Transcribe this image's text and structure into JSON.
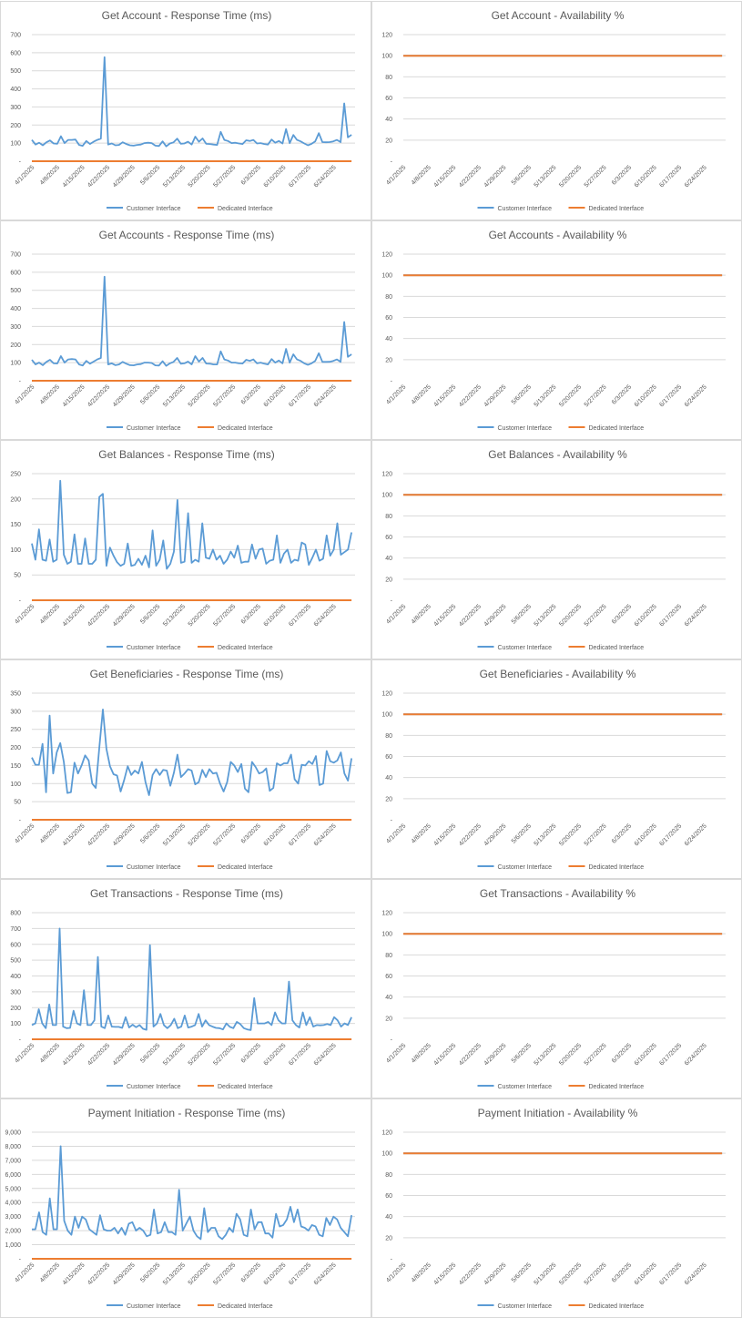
{
  "colors": {
    "customer": "#5b9bd5",
    "dedicated": "#ed7d31",
    "grid": "#d9d9d9",
    "text": "#595959"
  },
  "legend": {
    "customer": "Customer Interface",
    "dedicated": "Dedicated Interface"
  },
  "x_ticks": [
    "4/1/2025",
    "4/8/2025",
    "4/15/2025",
    "4/22/2025",
    "4/29/2025",
    "5/6/2025",
    "5/13/2025",
    "5/20/2025",
    "5/27/2025",
    "6/3/2025",
    "6/10/2025",
    "6/17/2025",
    "6/24/2025"
  ],
  "chart_data": [
    {
      "type": "line",
      "title": "Get Account - Response Time (ms)",
      "ylim": [
        0,
        700
      ],
      "yticks": [
        "-",
        "100",
        "200",
        "300",
        "400",
        "500",
        "600",
        "700"
      ],
      "grid": true,
      "legend_position": "bottom",
      "x_start": "4/1/2025",
      "x_end": "6/30/2025",
      "series": [
        {
          "name": "Customer Interface",
          "values": [
            118,
            92,
            102,
            88,
            105,
            115,
            98,
            96,
            138,
            100,
            118,
            118,
            120,
            90,
            85,
            112,
            95,
            108,
            118,
            125,
            575,
            92,
            98,
            88,
            90,
            105,
            95,
            88,
            86,
            90,
            92,
            100,
            102,
            100,
            86,
            84,
            110,
            82,
            98,
            104,
            125,
            96,
            98,
            108,
            92,
            136,
            108,
            126,
            96,
            95,
            92,
            90,
            162,
            118,
            112,
            100,
            102,
            98,
            95,
            116,
            112,
            118,
            98,
            100,
            95,
            92,
            120,
            102,
            112,
            98,
            178,
            100,
            145,
            118,
            110,
            98,
            88,
            96,
            110,
            155,
            106,
            105,
            106,
            110,
            118,
            106,
            320,
            132,
            146
          ]
        },
        {
          "name": "Dedicated Interface",
          "values": [
            0,
            0
          ]
        }
      ]
    },
    {
      "type": "line",
      "title": "Get Account - Availability %",
      "ylim": [
        0,
        120
      ],
      "yticks": [
        "-",
        "20",
        "40",
        "60",
        "80",
        "100",
        "120"
      ],
      "grid": true,
      "legend_position": "bottom",
      "x_start": "4/1/2025",
      "x_end": "6/30/2025",
      "series": [
        {
          "name": "Customer Interface",
          "values": [
            100,
            100
          ]
        },
        {
          "name": "Dedicated Interface",
          "values": [
            100,
            100
          ]
        }
      ]
    },
    {
      "type": "line",
      "title": "Get Accounts - Response Time (ms)",
      "ylim": [
        0,
        700
      ],
      "yticks": [
        "-",
        "100",
        "200",
        "300",
        "400",
        "500",
        "600",
        "700"
      ],
      "grid": true,
      "legend_position": "bottom",
      "x_start": "4/1/2025",
      "x_end": "6/30/2025",
      "series": [
        {
          "name": "Customer Interface",
          "values": [
            116,
            90,
            100,
            86,
            104,
            116,
            96,
            95,
            136,
            100,
            118,
            120,
            118,
            90,
            84,
            110,
            94,
            106,
            118,
            126,
            575,
            90,
            96,
            86,
            90,
            104,
            94,
            86,
            85,
            90,
            92,
            100,
            100,
            98,
            85,
            84,
            108,
            82,
            96,
            104,
            126,
            94,
            96,
            106,
            90,
            136,
            106,
            126,
            95,
            94,
            90,
            90,
            162,
            118,
            112,
            100,
            100,
            96,
            95,
            116,
            110,
            118,
            96,
            100,
            94,
            90,
            120,
            100,
            112,
            96,
            176,
            100,
            146,
            118,
            110,
            96,
            88,
            96,
            110,
            152,
            104,
            104,
            105,
            110,
            118,
            104,
            325,
            132,
            146
          ]
        },
        {
          "name": "Dedicated Interface",
          "values": [
            0,
            0
          ]
        }
      ]
    },
    {
      "type": "line",
      "title": "Get Accounts - Availability %",
      "ylim": [
        0,
        120
      ],
      "yticks": [
        "-",
        "20",
        "40",
        "60",
        "80",
        "100",
        "120"
      ],
      "grid": true,
      "legend_position": "bottom",
      "x_start": "4/1/2025",
      "x_end": "6/30/2025",
      "series": [
        {
          "name": "Customer Interface",
          "values": [
            100,
            100
          ]
        },
        {
          "name": "Dedicated Interface",
          "values": [
            100,
            100
          ]
        }
      ]
    },
    {
      "type": "line",
      "title": "Get Balances - Response Time (ms)",
      "ylim": [
        0,
        250
      ],
      "yticks": [
        "-",
        "50",
        "100",
        "150",
        "200",
        "250"
      ],
      "grid": true,
      "legend_position": "bottom",
      "x_start": "4/1/2025",
      "x_end": "6/30/2025",
      "series": [
        {
          "name": "Customer Interface",
          "values": [
            112,
            80,
            140,
            80,
            78,
            120,
            76,
            80,
            236,
            90,
            72,
            76,
            130,
            72,
            72,
            122,
            72,
            72,
            80,
            204,
            210,
            68,
            104,
            88,
            75,
            68,
            72,
            112,
            68,
            70,
            82,
            70,
            88,
            65,
            138,
            68,
            80,
            118,
            62,
            72,
            96,
            198,
            74,
            76,
            172,
            74,
            80,
            76,
            152,
            84,
            82,
            100,
            80,
            88,
            72,
            80,
            96,
            84,
            108,
            74,
            76,
            76,
            110,
            82,
            100,
            102,
            72,
            78,
            80,
            128,
            74,
            92,
            100,
            74,
            80,
            78,
            114,
            110,
            70,
            84,
            100,
            78,
            82,
            128,
            88,
            100,
            152,
            90,
            95,
            100,
            134
          ]
        },
        {
          "name": "Dedicated Interface",
          "values": [
            0,
            0
          ]
        }
      ]
    },
    {
      "type": "line",
      "title": "Get Balances - Availability %",
      "ylim": [
        0,
        120
      ],
      "yticks": [
        "-",
        "20",
        "40",
        "60",
        "80",
        "100",
        "120"
      ],
      "grid": true,
      "legend_position": "bottom",
      "x_start": "4/1/2025",
      "x_end": "6/30/2025",
      "series": [
        {
          "name": "Customer Interface",
          "values": [
            100,
            100
          ]
        },
        {
          "name": "Dedicated Interface",
          "values": [
            100,
            100
          ]
        }
      ]
    },
    {
      "type": "line",
      "title": "Get Beneficiaries - Response Time (ms)",
      "ylim": [
        0,
        350
      ],
      "yticks": [
        "-",
        "50",
        "100",
        "150",
        "200",
        "250",
        "300",
        "350"
      ],
      "grid": true,
      "legend_position": "bottom",
      "x_start": "4/1/2025",
      "x_end": "6/30/2025",
      "series": [
        {
          "name": "Customer Interface",
          "values": [
            172,
            152,
            152,
            210,
            76,
            288,
            128,
            186,
            212,
            160,
            74,
            76,
            158,
            128,
            150,
            178,
            164,
            100,
            88,
            200,
            305,
            196,
            148,
            126,
            122,
            78,
            110,
            148,
            124,
            136,
            128,
            160,
            104,
            68,
            124,
            140,
            124,
            138,
            136,
            94,
            130,
            180,
            118,
            128,
            140,
            136,
            98,
            104,
            138,
            118,
            140,
            128,
            130,
            100,
            78,
            104,
            160,
            150,
            132,
            154,
            86,
            76,
            160,
            146,
            128,
            132,
            142,
            80,
            88,
            156,
            150,
            156,
            156,
            180,
            112,
            100,
            152,
            150,
            162,
            154,
            176,
            96,
            100,
            190,
            162,
            158,
            164,
            186,
            128,
            108,
            170
          ]
        },
        {
          "name": "Dedicated Interface",
          "values": [
            0,
            0
          ]
        }
      ]
    },
    {
      "type": "line",
      "title": "Get Beneficiaries - Availability %",
      "ylim": [
        0,
        120
      ],
      "yticks": [
        "-",
        "20",
        "40",
        "60",
        "80",
        "100",
        "120"
      ],
      "grid": true,
      "legend_position": "bottom",
      "x_start": "4/1/2025",
      "x_end": "6/30/2025",
      "series": [
        {
          "name": "Customer Interface",
          "values": [
            100,
            100
          ]
        },
        {
          "name": "Dedicated Interface",
          "values": [
            100,
            100
          ]
        }
      ]
    },
    {
      "type": "line",
      "title": "Get Transactions - Response Time (ms)",
      "ylim": [
        0,
        800
      ],
      "yticks": [
        "-",
        "100",
        "200",
        "300",
        "400",
        "500",
        "600",
        "700",
        "800"
      ],
      "grid": true,
      "legend_position": "bottom",
      "x_start": "4/1/2025",
      "x_end": "6/30/2025",
      "series": [
        {
          "name": "Customer Interface",
          "values": [
            90,
            100,
            190,
            100,
            70,
            220,
            90,
            90,
            700,
            80,
            70,
            72,
            180,
            100,
            90,
            310,
            90,
            90,
            120,
            520,
            80,
            70,
            150,
            80,
            78,
            78,
            72,
            140,
            74,
            92,
            76,
            90,
            66,
            60,
            595,
            80,
            100,
            160,
            90,
            70,
            90,
            130,
            70,
            80,
            150,
            74,
            80,
            90,
            160,
            80,
            120,
            90,
            80,
            72,
            70,
            62,
            100,
            78,
            70,
            110,
            96,
            70,
            62,
            58,
            260,
            100,
            100,
            100,
            110,
            90,
            170,
            120,
            100,
            100,
            365,
            120,
            90,
            74,
            170,
            90,
            140,
            80,
            90,
            88,
            90,
            96,
            90,
            140,
            120,
            80,
            100,
            90,
            140
          ]
        },
        {
          "name": "Dedicated Interface",
          "values": [
            0,
            0
          ]
        }
      ]
    },
    {
      "type": "line",
      "title": "Get Transactions - Availability %",
      "ylim": [
        0,
        120
      ],
      "yticks": [
        "-",
        "20",
        "40",
        "60",
        "80",
        "100",
        "120"
      ],
      "grid": true,
      "legend_position": "bottom",
      "x_start": "4/1/2025",
      "x_end": "6/30/2025",
      "series": [
        {
          "name": "Customer Interface",
          "values": [
            100,
            100
          ]
        },
        {
          "name": "Dedicated Interface",
          "values": [
            100,
            100
          ]
        }
      ]
    },
    {
      "type": "line",
      "title": "Payment Initiation - Response Time (ms)",
      "ylim": [
        0,
        9000
      ],
      "yticks": [
        "-",
        "1,000",
        "2,000",
        "3,000",
        "4,000",
        "5,000",
        "6,000",
        "7,000",
        "8,000",
        "9,000"
      ],
      "grid": true,
      "legend_position": "bottom",
      "x_start": "4/1/2025",
      "x_end": "6/30/2025",
      "series": [
        {
          "name": "Customer Interface",
          "values": [
            2100,
            2100,
            3300,
            1900,
            1700,
            4300,
            2100,
            2100,
            8000,
            2700,
            2000,
            1700,
            3000,
            2200,
            3000,
            2800,
            2100,
            1900,
            1700,
            3100,
            2100,
            2000,
            2000,
            2200,
            1800,
            2200,
            1700,
            2500,
            2600,
            2000,
            2200,
            2000,
            1600,
            1700,
            3500,
            1800,
            1900,
            2600,
            1900,
            1900,
            1700,
            4900,
            2000,
            2500,
            3000,
            2000,
            1600,
            1400,
            3600,
            1900,
            2200,
            2200,
            1600,
            1400,
            1700,
            2200,
            1900,
            3200,
            2800,
            1700,
            1600,
            3500,
            2100,
            2600,
            2600,
            1800,
            1800,
            1500,
            3200,
            2300,
            2400,
            2800,
            3700,
            2600,
            3500,
            2300,
            2200,
            2000,
            2400,
            2300,
            1700,
            1600,
            2900,
            2400,
            3000,
            2800,
            2200,
            1900,
            1600,
            3100
          ]
        },
        {
          "name": "Dedicated Interface",
          "values": [
            0,
            0
          ]
        }
      ]
    },
    {
      "type": "line",
      "title": "Payment Initiation - Availability %",
      "ylim": [
        0,
        120
      ],
      "yticks": [
        "-",
        "20",
        "40",
        "60",
        "80",
        "100",
        "120"
      ],
      "grid": true,
      "legend_position": "bottom",
      "x_start": "4/1/2025",
      "x_end": "6/30/2025",
      "series": [
        {
          "name": "Customer Interface",
          "values": [
            100,
            100
          ]
        },
        {
          "name": "Dedicated Interface",
          "values": [
            100,
            100
          ]
        }
      ]
    }
  ]
}
